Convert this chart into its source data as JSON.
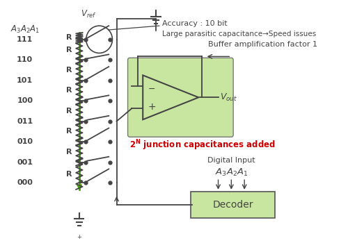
{
  "bg_color": "#ffffff",
  "green_line_color": "#44aa00",
  "dark_color": "#444444",
  "red_color": "#cc0000",
  "amp_box_color": "#c8e6a0",
  "decoder_box_color": "#c8e6a0",
  "text_accuracy": "Accuracy : 10 bit",
  "text_parasitic": "Large parasitic capacitance→Speed issues",
  "text_buffer": "Buffer amplification factor 1",
  "text_junction": "2ᵍ junction capacitances added",
  "text_digital": "Digital Input",
  "text_decoder": "Decoder",
  "figsize": [
    5.0,
    3.5
  ],
  "dpi": 100,
  "open_switches": [
    0,
    2,
    5,
    7
  ]
}
